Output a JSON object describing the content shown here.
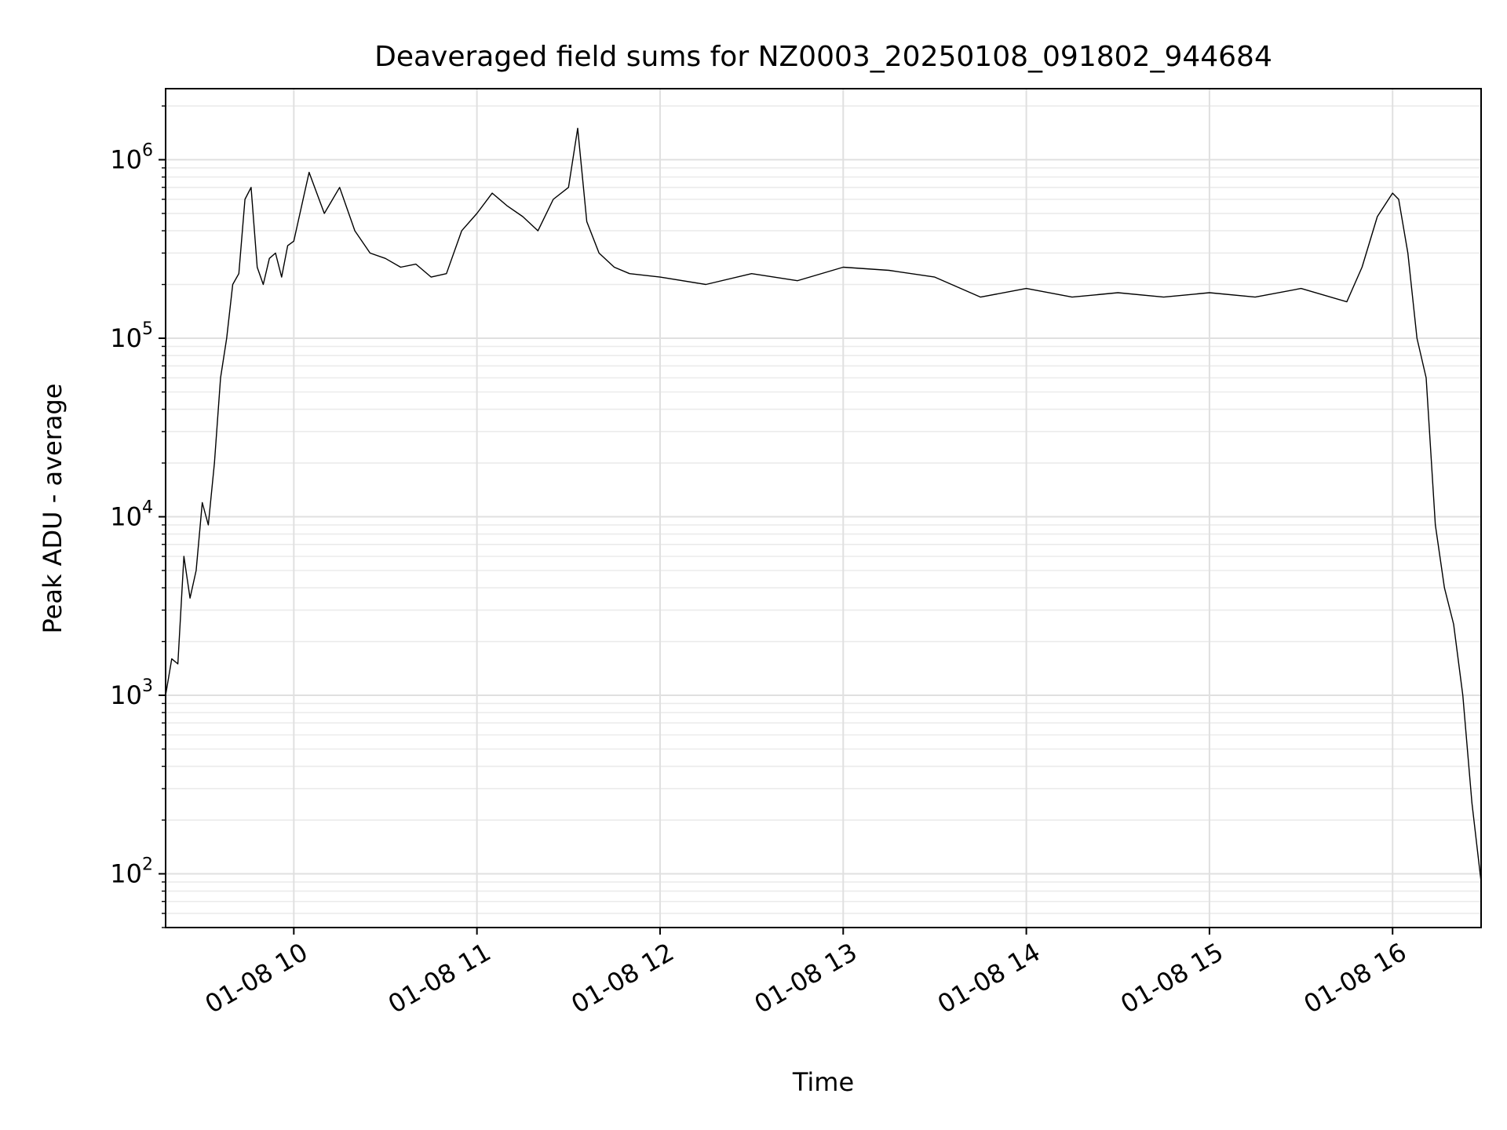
{
  "chart_data": {
    "type": "line",
    "title": "Deaveraged field sums for NZ0003_20250108_091802_944684",
    "xlabel": "Time",
    "ylabel": "Peak ADU - average",
    "yscale": "log",
    "ylim": [
      50,
      2500000
    ],
    "xlim": [
      "2025-01-08 09:18",
      "2025-01-08 16:29"
    ],
    "grid": true,
    "line_color": "#000000",
    "x_ticks": [
      {
        "t": "2025-01-08 10:00",
        "label": "01-08 10"
      },
      {
        "t": "2025-01-08 11:00",
        "label": "01-08 11"
      },
      {
        "t": "2025-01-08 12:00",
        "label": "01-08 12"
      },
      {
        "t": "2025-01-08 13:00",
        "label": "01-08 13"
      },
      {
        "t": "2025-01-08 14:00",
        "label": "01-08 14"
      },
      {
        "t": "2025-01-08 15:00",
        "label": "01-08 15"
      },
      {
        "t": "2025-01-08 16:00",
        "label": "01-08 16"
      }
    ],
    "y_ticks": [
      {
        "value": 100,
        "base": "10",
        "exp": "2"
      },
      {
        "value": 1000,
        "base": "10",
        "exp": "3"
      },
      {
        "value": 10000,
        "base": "10",
        "exp": "4"
      },
      {
        "value": 100000,
        "base": "10",
        "exp": "5"
      },
      {
        "value": 1000000,
        "base": "10",
        "exp": "6"
      }
    ],
    "series": [
      {
        "x": [
          "2025-01-08 09:18",
          "2025-01-08 09:20",
          "2025-01-08 09:22",
          "2025-01-08 09:24",
          "2025-01-08 09:26",
          "2025-01-08 09:28",
          "2025-01-08 09:30",
          "2025-01-08 09:32",
          "2025-01-08 09:34",
          "2025-01-08 09:36",
          "2025-01-08 09:38",
          "2025-01-08 09:40",
          "2025-01-08 09:42",
          "2025-01-08 09:44",
          "2025-01-08 09:46",
          "2025-01-08 09:48",
          "2025-01-08 09:50",
          "2025-01-08 09:52",
          "2025-01-08 09:54",
          "2025-01-08 09:56",
          "2025-01-08 09:58",
          "2025-01-08 10:00",
          "2025-01-08 10:05",
          "2025-01-08 10:10",
          "2025-01-08 10:15",
          "2025-01-08 10:20",
          "2025-01-08 10:25",
          "2025-01-08 10:30",
          "2025-01-08 10:35",
          "2025-01-08 10:40",
          "2025-01-08 10:45",
          "2025-01-08 10:50",
          "2025-01-08 10:55",
          "2025-01-08 11:00",
          "2025-01-08 11:05",
          "2025-01-08 11:10",
          "2025-01-08 11:15",
          "2025-01-08 11:20",
          "2025-01-08 11:25",
          "2025-01-08 11:30",
          "2025-01-08 11:33",
          "2025-01-08 11:36",
          "2025-01-08 11:40",
          "2025-01-08 11:45",
          "2025-01-08 11:50",
          "2025-01-08 12:00",
          "2025-01-08 12:15",
          "2025-01-08 12:30",
          "2025-01-08 12:45",
          "2025-01-08 13:00",
          "2025-01-08 13:15",
          "2025-01-08 13:30",
          "2025-01-08 13:45",
          "2025-01-08 14:00",
          "2025-01-08 14:15",
          "2025-01-08 14:30",
          "2025-01-08 14:45",
          "2025-01-08 15:00",
          "2025-01-08 15:15",
          "2025-01-08 15:30",
          "2025-01-08 15:45",
          "2025-01-08 15:50",
          "2025-01-08 15:55",
          "2025-01-08 16:00",
          "2025-01-08 16:02",
          "2025-01-08 16:05",
          "2025-01-08 16:08",
          "2025-01-08 16:11",
          "2025-01-08 16:14",
          "2025-01-08 16:17",
          "2025-01-08 16:20",
          "2025-01-08 16:23",
          "2025-01-08 16:26",
          "2025-01-08 16:29"
        ],
        "y": [
          1000,
          1600,
          1500,
          6000,
          3500,
          5000,
          12000,
          9000,
          20000,
          60000,
          100000,
          200000,
          230000,
          600000,
          700000,
          250000,
          200000,
          280000,
          300000,
          220000,
          330000,
          350000,
          850000,
          500000,
          700000,
          400000,
          300000,
          280000,
          250000,
          260000,
          220000,
          230000,
          400000,
          500000,
          650000,
          550000,
          480000,
          400000,
          600000,
          700000,
          1500000,
          450000,
          300000,
          250000,
          230000,
          220000,
          200000,
          230000,
          210000,
          250000,
          240000,
          220000,
          170000,
          190000,
          170000,
          180000,
          170000,
          180000,
          170000,
          190000,
          160000,
          250000,
          480000,
          650000,
          600000,
          300000,
          100000,
          60000,
          9000,
          4000,
          2500,
          1000,
          250,
          90
        ]
      }
    ]
  }
}
